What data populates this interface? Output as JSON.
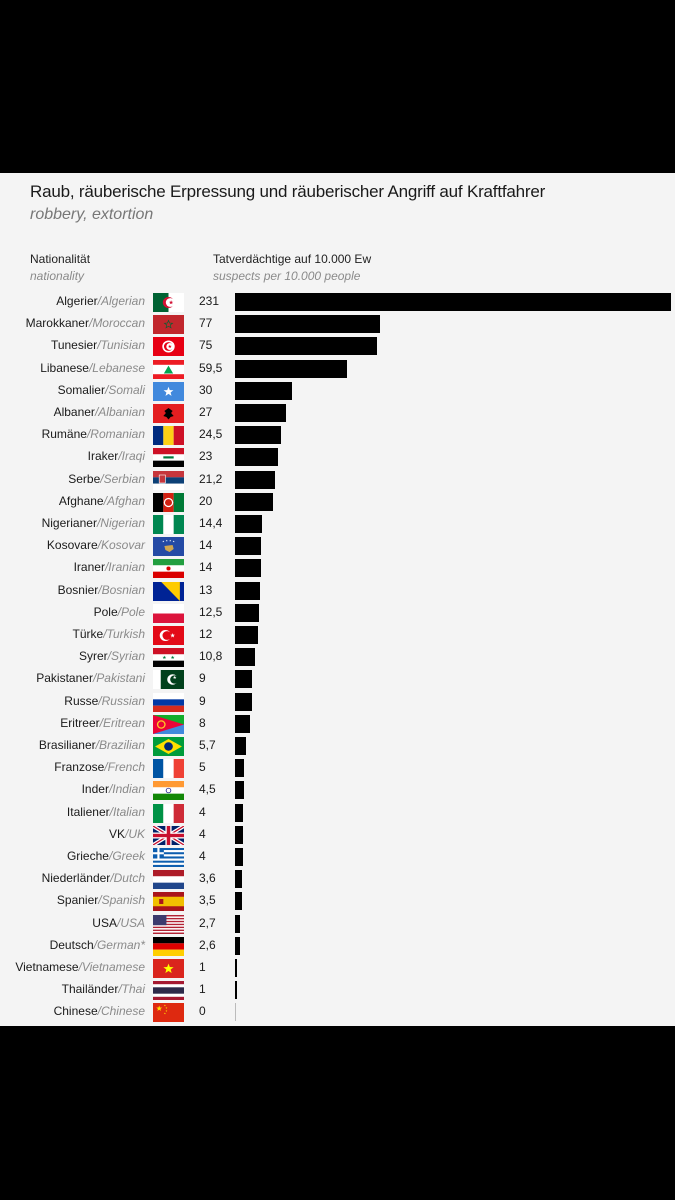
{
  "chart_data": {
    "type": "bar",
    "orientation": "horizontal",
    "title": "Raub, räuberische Erpressung und räuberischer Angriff auf Kraftfahrer",
    "subtitle": "robbery, extortion",
    "category_header": "Nationalität",
    "category_header_en": "nationality",
    "value_header": "Tatverdächtige auf 10.000 Ew",
    "value_header_en": "suspects per 10.000 people",
    "xlim": [
      0,
      231
    ],
    "grid": false,
    "legend": "none",
    "rows": [
      {
        "de": "Algerier",
        "en": "Algerian",
        "value": 231,
        "value_label": "231",
        "flag": "algeria-flag"
      },
      {
        "de": "Marokkaner",
        "en": "Moroccan",
        "value": 77,
        "value_label": "77",
        "flag": "morocco-flag"
      },
      {
        "de": "Tunesier",
        "en": "Tunisian",
        "value": 75,
        "value_label": "75",
        "flag": "tunisia-flag"
      },
      {
        "de": "Libanese",
        "en": "Lebanese",
        "value": 59.5,
        "value_label": "59,5",
        "flag": "lebanon-flag"
      },
      {
        "de": "Somalier",
        "en": "Somali",
        "value": 30,
        "value_label": "30",
        "flag": "somalia-flag"
      },
      {
        "de": "Albaner",
        "en": "Albanian",
        "value": 27,
        "value_label": "27",
        "flag": "albania-flag"
      },
      {
        "de": "Rumäne",
        "en": "Romanian",
        "value": 24.5,
        "value_label": "24,5",
        "flag": "romania-flag"
      },
      {
        "de": "Iraker",
        "en": "Iraqi",
        "value": 23,
        "value_label": "23",
        "flag": "iraq-flag"
      },
      {
        "de": "Serbe",
        "en": "Serbian",
        "value": 21.2,
        "value_label": "21,2",
        "flag": "serbia-flag"
      },
      {
        "de": "Afghane",
        "en": "Afghan",
        "value": 20,
        "value_label": "20",
        "flag": "afghanistan-flag"
      },
      {
        "de": "Nigerianer",
        "en": "Nigerian",
        "value": 14.4,
        "value_label": "14,4",
        "flag": "nigeria-flag"
      },
      {
        "de": "Kosovare",
        "en": "Kosovar",
        "value": 14,
        "value_label": "14",
        "flag": "kosovo-flag"
      },
      {
        "de": "Iraner",
        "en": "Iranian",
        "value": 14,
        "value_label": "14",
        "flag": "iran-flag"
      },
      {
        "de": "Bosnier",
        "en": "Bosnian",
        "value": 13,
        "value_label": "13",
        "flag": "bosnia-flag"
      },
      {
        "de": "Pole",
        "en": "Pole",
        "value": 12.5,
        "value_label": "12,5",
        "flag": "poland-flag"
      },
      {
        "de": "Türke",
        "en": "Turkish",
        "value": 12,
        "value_label": "12",
        "flag": "turkey-flag"
      },
      {
        "de": "Syrer",
        "en": "Syrian",
        "value": 10.8,
        "value_label": "10,8",
        "flag": "syria-flag"
      },
      {
        "de": "Pakistaner",
        "en": "Pakistani",
        "value": 9,
        "value_label": "9",
        "flag": "pakistan-flag"
      },
      {
        "de": "Russe",
        "en": "Russian",
        "value": 9,
        "value_label": "9",
        "flag": "russia-flag"
      },
      {
        "de": "Eritreer",
        "en": "Eritrean",
        "value": 8,
        "value_label": "8",
        "flag": "eritrea-flag"
      },
      {
        "de": "Brasilianer",
        "en": "Brazilian",
        "value": 5.7,
        "value_label": "5,7",
        "flag": "brazil-flag"
      },
      {
        "de": "Franzose",
        "en": "French",
        "value": 5,
        "value_label": "5",
        "flag": "france-flag"
      },
      {
        "de": "Inder",
        "en": "Indian",
        "value": 4.5,
        "value_label": "4,5",
        "flag": "india-flag"
      },
      {
        "de": "Italiener",
        "en": "Italian",
        "value": 4,
        "value_label": "4",
        "flag": "italy-flag"
      },
      {
        "de": "VK",
        "en": "UK",
        "value": 4,
        "value_label": "4",
        "flag": "uk-flag"
      },
      {
        "de": "Grieche",
        "en": "Greek",
        "value": 4,
        "value_label": "4",
        "flag": "greece-flag"
      },
      {
        "de": "Niederländer",
        "en": "Dutch",
        "value": 3.6,
        "value_label": "3,6",
        "flag": "netherlands-flag"
      },
      {
        "de": "Spanier",
        "en": "Spanish",
        "value": 3.5,
        "value_label": "3,5",
        "flag": "spain-flag"
      },
      {
        "de": "USA",
        "en": "USA",
        "value": 2.7,
        "value_label": "2,7",
        "flag": "usa-flag"
      },
      {
        "de": "Deutsch",
        "en": "German*",
        "value": 2.6,
        "value_label": "2,6",
        "flag": "germany-flag"
      },
      {
        "de": "Vietnamese",
        "en": "Vietnamese",
        "value": 1,
        "value_label": "1",
        "flag": "vietnam-flag"
      },
      {
        "de": "Thailänder",
        "en": "Thai",
        "value": 1,
        "value_label": "1",
        "flag": "thailand-flag"
      },
      {
        "de": "Chinese",
        "en": "Chinese",
        "value": 0,
        "value_label": "0",
        "flag": "china-flag"
      }
    ]
  },
  "colors": {
    "bar": "#000000",
    "background": "#f4f4f4",
    "frame": "#000000",
    "text": "#1a1a1a",
    "translation_text": "#8a8a8a"
  }
}
